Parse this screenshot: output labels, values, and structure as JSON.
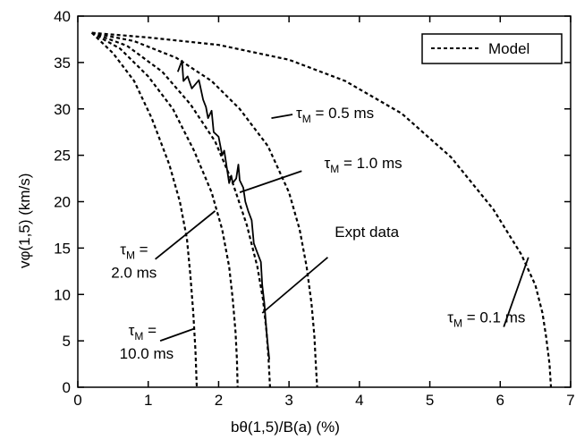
{
  "chart_data": {
    "type": "line",
    "xlabel": "bθ(1,5)/B(a)  (%)",
    "ylabel": "vφ(1,5)  (km/s)",
    "xlim": [
      0,
      7
    ],
    "ylim": [
      0,
      40
    ],
    "x_ticks": [
      "0",
      "1",
      "2",
      "3",
      "4",
      "5",
      "6",
      "7"
    ],
    "y_ticks": [
      "0",
      "5",
      "10",
      "15",
      "20",
      "25",
      "30",
      "35",
      "40"
    ],
    "legend": {
      "label": "Model",
      "position": "top-right",
      "style": "dashed"
    },
    "series": [
      {
        "name": "Model",
        "tau_label": "τM = 0.1 ms",
        "style": "dashed",
        "x": [
          0.2,
          1.0,
          2.0,
          3.0,
          3.8,
          4.6,
          5.3,
          5.9,
          6.3,
          6.5,
          6.6,
          6.65,
          6.7,
          6.72
        ],
        "y": [
          38.2,
          37.7,
          36.9,
          35.3,
          33.0,
          29.5,
          24.8,
          19.2,
          14.3,
          11.0,
          8.0,
          5.5,
          2.5,
          0
        ]
      },
      {
        "name": "Model",
        "tau_label": "τM = 0.5 ms",
        "style": "dashed",
        "x": [
          0.2,
          0.8,
          1.4,
          1.9,
          2.3,
          2.7,
          3.0,
          3.15,
          3.25,
          3.32,
          3.36,
          3.38,
          3.4
        ],
        "y": [
          38.2,
          37.3,
          35.5,
          33.0,
          30.0,
          26.0,
          21.0,
          17.0,
          13.0,
          9.0,
          5.5,
          2.5,
          0
        ]
      },
      {
        "name": "Model",
        "tau_label": "τM = 1.0 ms",
        "style": "dashed",
        "x": [
          0.2,
          0.7,
          1.2,
          1.6,
          1.95,
          2.2,
          2.4,
          2.55,
          2.63,
          2.68,
          2.71,
          2.73
        ],
        "y": [
          38.2,
          36.8,
          34.0,
          30.5,
          26.5,
          22.0,
          17.5,
          13.0,
          9.5,
          6.0,
          3.0,
          0
        ]
      },
      {
        "name": "Model",
        "tau_label": "τM = 2.0 ms",
        "style": "dashed",
        "x": [
          0.2,
          0.6,
          1.0,
          1.35,
          1.65,
          1.9,
          2.05,
          2.15,
          2.2,
          2.24,
          2.26,
          2.27
        ],
        "y": [
          38.2,
          36.5,
          33.5,
          30.0,
          25.5,
          21.0,
          17.0,
          13.0,
          9.5,
          6.0,
          3.0,
          0
        ]
      },
      {
        "name": "Model",
        "tau_label": "τM = 10.0 ms",
        "style": "dashed",
        "x": [
          0.2,
          0.5,
          0.8,
          1.05,
          1.3,
          1.45,
          1.55,
          1.6,
          1.64,
          1.67,
          1.69
        ],
        "y": [
          38.2,
          36.0,
          33.0,
          29.0,
          24.0,
          20.0,
          16.0,
          12.0,
          8.0,
          4.0,
          0
        ]
      },
      {
        "name": "Expt data",
        "style": "solid",
        "x": [
          1.42,
          1.48,
          1.5,
          1.56,
          1.62,
          1.72,
          1.78,
          1.82,
          1.85,
          1.9,
          1.93,
          2.0,
          2.05,
          2.08,
          2.15,
          2.18,
          2.2,
          2.25,
          2.28,
          2.3,
          2.35,
          2.38,
          2.42,
          2.47,
          2.5,
          2.55,
          2.6,
          2.62,
          2.65,
          2.68,
          2.7,
          2.72
        ],
        "y": [
          34.0,
          35.2,
          33.0,
          33.5,
          32.2,
          33.1,
          31.0,
          30.2,
          29.0,
          29.8,
          27.5,
          27.0,
          25.0,
          25.5,
          22.0,
          22.8,
          22.0,
          22.5,
          24.0,
          22.3,
          21.5,
          20.0,
          19.0,
          18.0,
          15.5,
          14.5,
          13.5,
          11.0,
          9.0,
          6.0,
          4.5,
          3.0
        ]
      }
    ],
    "annotations": [
      {
        "id": "tau01",
        "line1": "τ",
        "sub": "M",
        "rest": " = 0.1 ms",
        "x": 5.25,
        "y": 7.0,
        "ptr_from": [
          6.05,
          6.5
        ],
        "ptr_to": [
          6.4,
          14.0
        ]
      },
      {
        "id": "tau05",
        "line1": "τ",
        "sub": "M",
        "rest": " = 0.5 ms",
        "x": 3.1,
        "y": 29.0,
        "ptr_from": [
          3.05,
          29.4
        ],
        "ptr_to": [
          2.75,
          29.0
        ]
      },
      {
        "id": "tau10",
        "line1": "τ",
        "sub": "M",
        "rest": " = 1.0 ms",
        "x": 3.5,
        "y": 23.6,
        "ptr_from": [
          3.18,
          23.3
        ],
        "ptr_to": [
          2.3,
          21.0
        ]
      },
      {
        "id": "tau20",
        "line1": "τ",
        "sub": "M",
        "rest": " =",
        "line2": "2.0 ms",
        "x": 0.6,
        "y": 14.3,
        "ptr_from": [
          1.1,
          13.8
        ],
        "ptr_to": [
          1.95,
          19.0
        ]
      },
      {
        "id": "tau100",
        "line1": "τ",
        "sub": "M",
        "rest": " =",
        "line2": "10.0 ms",
        "x": 0.72,
        "y": 5.6,
        "ptr_from": [
          1.17,
          5.0
        ],
        "ptr_to": [
          1.65,
          6.3
        ]
      },
      {
        "id": "expt",
        "text": "Expt data",
        "x": 3.65,
        "y": 16.2,
        "ptr_from": [
          3.55,
          14.0
        ],
        "ptr_to": [
          2.62,
          8.0
        ]
      }
    ]
  }
}
